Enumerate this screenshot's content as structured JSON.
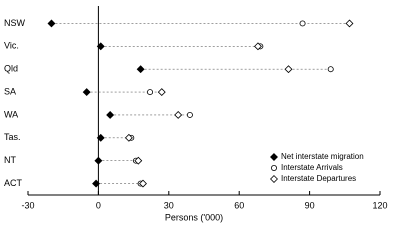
{
  "chart_data": {
    "type": "dot",
    "categories": [
      "NSW",
      "Vic.",
      "Qld",
      "SA",
      "WA",
      "Tas.",
      "NT",
      "ACT"
    ],
    "series": [
      {
        "name": "Net interstate migration",
        "color": "#000000",
        "marker": "filled-diamond",
        "values": [
          -20,
          1,
          18,
          -5,
          5,
          1,
          0,
          -1
        ]
      },
      {
        "name": "Interstate Arrivals",
        "color": "#000000",
        "marker": "open-circle",
        "values": [
          87,
          69,
          99,
          22,
          39,
          14,
          16,
          18
        ]
      },
      {
        "name": "Interstate Departures",
        "color": "#000000",
        "marker": "open-diamond",
        "values": [
          107,
          68,
          81,
          27,
          34,
          13,
          17,
          19
        ]
      }
    ],
    "xlabel": "Persons ('000)",
    "xlim": [
      -30,
      120
    ],
    "xticks": [
      -30,
      0,
      30,
      60,
      90,
      120
    ],
    "legend": "lower right"
  }
}
